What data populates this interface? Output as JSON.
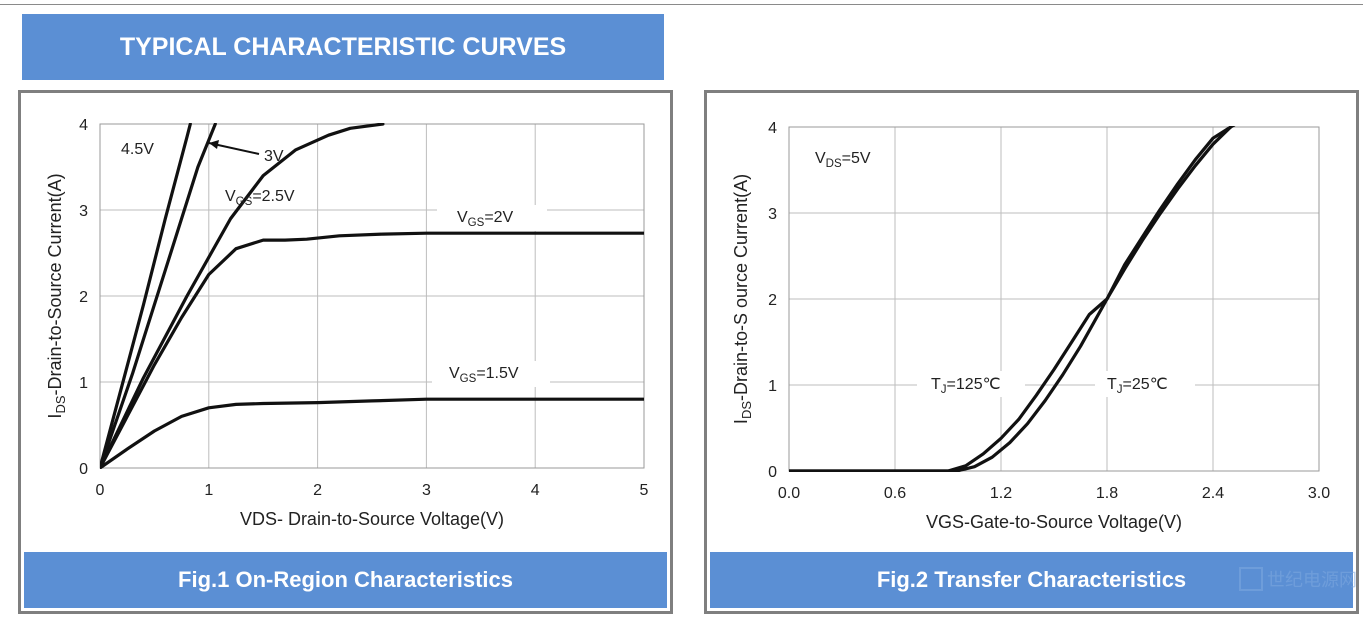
{
  "header": {
    "title": "TYPICAL CHARACTERISTIC CURVES"
  },
  "watermark": {
    "text": "世纪电源网"
  },
  "chart_data": [
    {
      "type": "line",
      "caption": "Fig.1 On-Region Characteristics",
      "xlabel": "VDS- Drain-to-Source  Voltage(V)",
      "ylabel": "Drain-to-Source Current(A)",
      "ylabel_prefix": "I",
      "ylabel_sub": "DS",
      "xlim": [
        0,
        5
      ],
      "ylim": [
        0,
        4
      ],
      "xticks": [
        0,
        1,
        2,
        3,
        4,
        5
      ],
      "xtick_labels": [
        "0",
        "1",
        "2",
        "3",
        "4",
        "5"
      ],
      "yticks": [
        0,
        1,
        2,
        3,
        4
      ],
      "ytick_labels": [
        "0",
        "1",
        "2",
        "3",
        "4"
      ],
      "grid": true,
      "series": [
        {
          "name": "4.5V",
          "x": [
            0,
            0.2,
            0.4,
            0.6,
            0.8,
            0.83
          ],
          "y": [
            0,
            0.95,
            1.9,
            2.9,
            3.85,
            4.0
          ]
        },
        {
          "name": "3V",
          "x": [
            0,
            0.3,
            0.6,
            0.9,
            1.06
          ],
          "y": [
            0,
            1.1,
            2.3,
            3.5,
            4.0
          ]
        },
        {
          "name": "VGS=2.5V",
          "x": [
            0,
            0.4,
            0.8,
            1.2,
            1.5,
            1.8,
            2.1,
            2.3,
            2.6
          ],
          "y": [
            0,
            1.05,
            2.0,
            2.9,
            3.4,
            3.7,
            3.87,
            3.95,
            4.0
          ]
        },
        {
          "name": "VGS=2V",
          "x": [
            0,
            0.25,
            0.5,
            0.75,
            1.0,
            1.25,
            1.5,
            1.7,
            1.9,
            2.2,
            2.6,
            3.0,
            4.0,
            5.0
          ],
          "y": [
            0,
            0.6,
            1.2,
            1.75,
            2.25,
            2.55,
            2.65,
            2.65,
            2.66,
            2.7,
            2.72,
            2.73,
            2.73,
            2.73
          ]
        },
        {
          "name": "VGS=1.5V",
          "x": [
            0,
            0.25,
            0.5,
            0.75,
            1.0,
            1.25,
            1.5,
            2.0,
            2.5,
            3.0,
            4.0,
            5.0
          ],
          "y": [
            0,
            0.22,
            0.43,
            0.6,
            0.7,
            0.74,
            0.75,
            0.76,
            0.78,
            0.8,
            0.8,
            0.8
          ]
        }
      ],
      "annotations": [
        {
          "text": "4.5V"
        },
        {
          "text": "3V"
        },
        {
          "prefix": "V",
          "sub": "GS",
          "suffix": "=2.5V"
        },
        {
          "prefix": "V",
          "sub": "GS",
          "suffix": "=2V"
        },
        {
          "prefix": "V",
          "sub": "GS",
          "suffix": "=1.5V"
        }
      ]
    },
    {
      "type": "line",
      "caption": "Fig.2 Transfer Characteristics",
      "xlabel": "VGS-Gate-to-Source  Voltage(V)",
      "ylabel": "Drain-to-S ource Current(A)",
      "ylabel_prefix": "I",
      "ylabel_sub": "DS",
      "xlim": [
        0,
        3.0
      ],
      "ylim": [
        0,
        4
      ],
      "xticks": [
        0,
        0.6,
        1.2,
        1.8,
        2.4,
        3.0
      ],
      "xtick_labels": [
        "0.0",
        "0.6",
        "1.2",
        "1.8",
        "2.4",
        "3.0"
      ],
      "yticks": [
        0,
        1,
        2,
        3,
        4
      ],
      "ytick_labels": [
        "0",
        "1",
        "2",
        "3",
        "4"
      ],
      "grid": true,
      "series": [
        {
          "name": "TJ=125℃",
          "x": [
            0,
            0.5,
            0.8,
            0.9,
            1.0,
            1.1,
            1.2,
            1.3,
            1.4,
            1.5,
            1.6,
            1.7,
            1.8,
            1.9,
            2.0,
            2.1,
            2.2,
            2.3,
            2.4,
            2.5
          ],
          "y": [
            0.0,
            0.0,
            0.0,
            0.0,
            0.06,
            0.2,
            0.38,
            0.6,
            0.88,
            1.18,
            1.5,
            1.82,
            2.0,
            2.4,
            2.72,
            3.04,
            3.34,
            3.62,
            3.87,
            4.0
          ]
        },
        {
          "name": "TJ=25℃",
          "x": [
            0,
            0.5,
            0.85,
            0.95,
            1.05,
            1.15,
            1.25,
            1.35,
            1.45,
            1.55,
            1.65,
            1.8,
            1.9,
            2.0,
            2.1,
            2.2,
            2.3,
            2.4,
            2.5,
            2.55
          ],
          "y": [
            0.0,
            0.0,
            0.0,
            0.0,
            0.05,
            0.16,
            0.33,
            0.55,
            0.82,
            1.12,
            1.45,
            2.0,
            2.35,
            2.68,
            2.99,
            3.28,
            3.55,
            3.8,
            4.0,
            4.06
          ]
        }
      ],
      "annotations": [
        {
          "prefix": "V",
          "sub": "DS",
          "suffix": "=5V"
        },
        {
          "prefix": "T",
          "sub": "J",
          "suffix": "=125℃"
        },
        {
          "prefix": "T",
          "sub": "J",
          "suffix": "=25℃"
        }
      ]
    }
  ]
}
